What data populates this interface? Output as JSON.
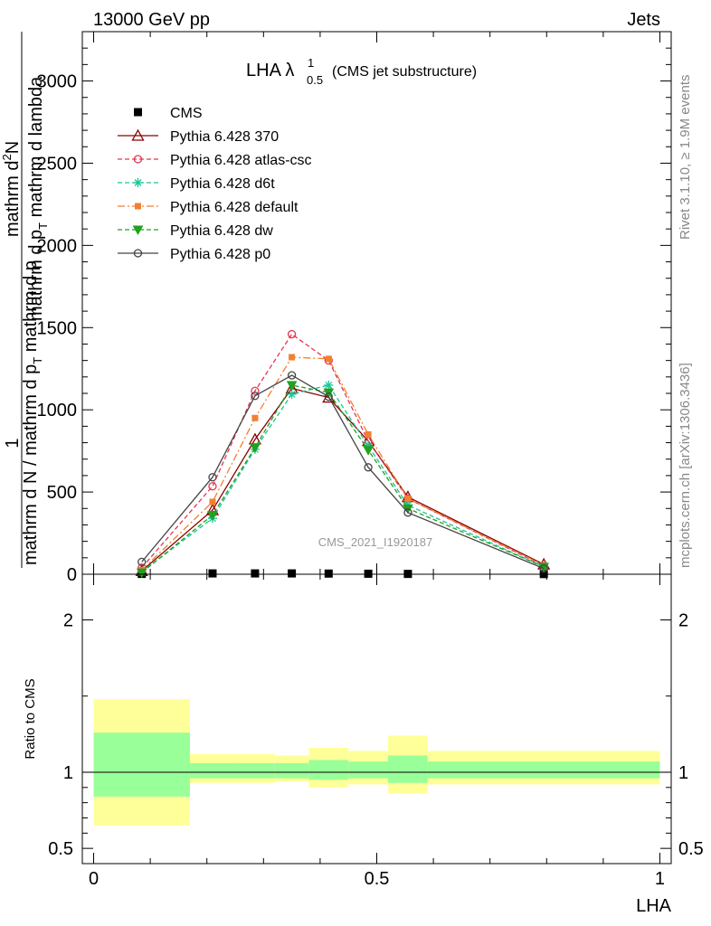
{
  "header": {
    "left": "13000 GeV pp",
    "right": "Jets"
  },
  "side_labels": {
    "rivet": "Rivet 3.1.10, ≥ 1.9M events",
    "mcplots": "mcplots.cern.ch [arXiv:1306.3436]"
  },
  "watermark": "CMS_2021_I1920187",
  "chart_data": [
    {
      "type": "line",
      "title": "LHA λ",
      "title_sup": "1",
      "title_sub": "0.5",
      "title_suffix": "(CMS jet substructure)",
      "ylabel_top": "mathrm d²N",
      "ylabel_top_sup": "2",
      "ylabel_top_base": "mathrm d",
      "ylabel_top_tail": "N",
      "ylabel_denom1": "mathrm d p",
      "ylabel_denom1_sub": "T",
      "ylabel_denom2": " mathrm d lambda",
      "ylabel_numer_one": "1",
      "ylabel_lower": "mathrm d N / mathrm d p",
      "ylabel_lower_sub": "T",
      "ylabel_lower_tail": " mathrm d p",
      "ylim": [
        0,
        3300
      ],
      "yticks": [
        0,
        500,
        1000,
        1500,
        2000,
        2500,
        3000
      ],
      "ytick_labels": [
        "0",
        "500",
        "1000",
        "1500",
        "2000",
        "2500",
        "3000"
      ],
      "xlim": [
        -0.02,
        1.02
      ],
      "legend_position": "top-left",
      "series": [
        {
          "name": "CMS",
          "style": "data",
          "color": "#000000",
          "x": [
            0.085,
            0.21,
            0.285,
            0.35,
            0.415,
            0.485,
            0.555,
            0.795
          ],
          "y": [
            2,
            5,
            5,
            5,
            4,
            3,
            2,
            1
          ]
        },
        {
          "name": "Pythia 6.428 370",
          "style": "solid",
          "marker": "triangle-open",
          "color": "#8b0000",
          "x": [
            0.085,
            0.21,
            0.285,
            0.35,
            0.415,
            0.485,
            0.555,
            0.795
          ],
          "y": [
            20,
            390,
            820,
            1130,
            1075,
            810,
            470,
            60
          ]
        },
        {
          "name": "Pythia 6.428 atlas-csc",
          "style": "dashed",
          "marker": "circle-open",
          "color": "#e8344f",
          "x": [
            0.085,
            0.21,
            0.285,
            0.35,
            0.415,
            0.485,
            0.555,
            0.795
          ],
          "y": [
            40,
            535,
            1115,
            1460,
            1300,
            810,
            460,
            50
          ]
        },
        {
          "name": "Pythia 6.428 d6t",
          "style": "dashed",
          "marker": "asterisk",
          "color": "#17c69b",
          "x": [
            0.085,
            0.21,
            0.285,
            0.35,
            0.415,
            0.485,
            0.555,
            0.795
          ],
          "y": [
            15,
            340,
            760,
            1095,
            1150,
            780,
            420,
            45
          ]
        },
        {
          "name": "Pythia 6.428 default",
          "style": "dashdot",
          "marker": "square",
          "color": "#f28030",
          "x": [
            0.085,
            0.21,
            0.285,
            0.35,
            0.415,
            0.485,
            0.555,
            0.795
          ],
          "y": [
            25,
            440,
            950,
            1320,
            1310,
            850,
            460,
            55
          ]
        },
        {
          "name": "Pythia 6.428 dw",
          "style": "dashed",
          "marker": "triangle-down",
          "color": "#1fa21f",
          "x": [
            0.085,
            0.21,
            0.285,
            0.35,
            0.415,
            0.485,
            0.555,
            0.795
          ],
          "y": [
            10,
            360,
            770,
            1150,
            1105,
            755,
            400,
            45
          ]
        },
        {
          "name": "Pythia 6.428 p0",
          "style": "solid",
          "marker": "circle-open",
          "color": "#444444",
          "x": [
            0.085,
            0.21,
            0.285,
            0.35,
            0.415,
            0.485,
            0.555,
            0.795
          ],
          "y": [
            75,
            590,
            1085,
            1210,
            1080,
            650,
            375,
            35
          ]
        }
      ]
    },
    {
      "type": "area",
      "ylabel": "Ratio to CMS",
      "ylim": [
        0.4,
        2.3
      ],
      "yticks": [
        0.5,
        1,
        2
      ],
      "ytick_labels": [
        "0.5",
        "1",
        "2"
      ],
      "xlim": [
        -0.02,
        1.02
      ],
      "xticks": [
        0,
        0.5,
        1
      ],
      "xtick_labels": [
        "0",
        "0.5",
        "1"
      ],
      "xlabel": "LHA",
      "bins": [
        {
          "x0": 0.0,
          "x1": 0.17,
          "yellow": [
            0.65,
            1.48
          ],
          "green": [
            0.84,
            1.26
          ]
        },
        {
          "x0": 0.17,
          "x1": 0.25,
          "yellow": [
            0.93,
            1.12
          ],
          "green": [
            0.96,
            1.06
          ]
        },
        {
          "x0": 0.25,
          "x1": 0.32,
          "yellow": [
            0.93,
            1.12
          ],
          "green": [
            0.96,
            1.06
          ]
        },
        {
          "x0": 0.32,
          "x1": 0.38,
          "yellow": [
            0.94,
            1.11
          ],
          "green": [
            0.96,
            1.06
          ]
        },
        {
          "x0": 0.38,
          "x1": 0.45,
          "yellow": [
            0.9,
            1.16
          ],
          "green": [
            0.95,
            1.08
          ]
        },
        {
          "x0": 0.45,
          "x1": 0.52,
          "yellow": [
            0.92,
            1.14
          ],
          "green": [
            0.96,
            1.07
          ]
        },
        {
          "x0": 0.52,
          "x1": 0.59,
          "yellow": [
            0.86,
            1.24
          ],
          "green": [
            0.93,
            1.11
          ]
        },
        {
          "x0": 0.59,
          "x1": 1.0,
          "yellow": [
            0.92,
            1.14
          ],
          "green": [
            0.96,
            1.07
          ]
        }
      ]
    }
  ]
}
